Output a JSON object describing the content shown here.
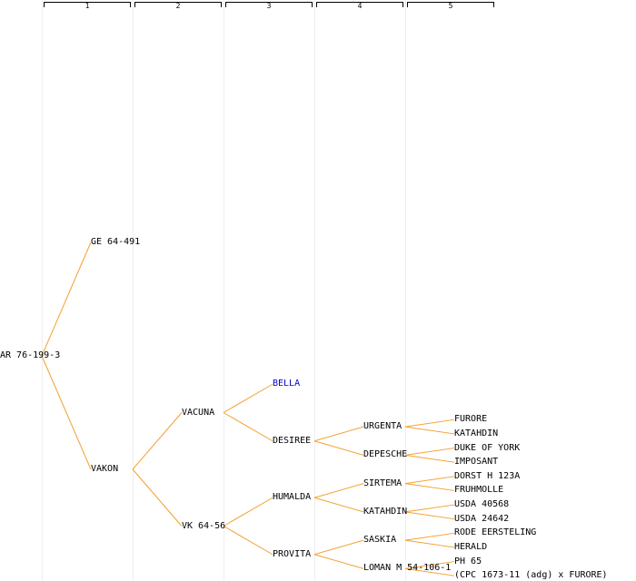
{
  "columns": [
    "1",
    "2",
    "3",
    "4",
    "5"
  ],
  "colors": {
    "edge": "#f4a030",
    "text": "#000000",
    "link": "#0000cc"
  },
  "tree": {
    "label": "AR 76-199-3",
    "children": [
      {
        "label": "GE 64-491",
        "children": []
      },
      {
        "label": "VAKON",
        "children": [
          {
            "label": "VACUNA",
            "children": [
              {
                "label": "BELLA",
                "link": true,
                "children": []
              },
              {
                "label": "DESIREE",
                "children": [
                  {
                    "label": "URGENTA",
                    "children": [
                      {
                        "label": "FURORE",
                        "children": []
                      },
                      {
                        "label": "KATAHDIN",
                        "children": []
                      }
                    ]
                  },
                  {
                    "label": "DEPESCHE",
                    "children": [
                      {
                        "label": "DUKE OF YORK",
                        "children": []
                      },
                      {
                        "label": "IMPOSANT",
                        "children": []
                      }
                    ]
                  }
                ]
              }
            ]
          },
          {
            "label": "VK 64-56",
            "children": [
              {
                "label": "HUMALDA",
                "children": [
                  {
                    "label": "SIRTEMA",
                    "children": [
                      {
                        "label": "DORST H 123A",
                        "children": []
                      },
                      {
                        "label": "FRUHMOLLE",
                        "children": []
                      }
                    ]
                  },
                  {
                    "label": "KATAHDIN",
                    "children": [
                      {
                        "label": "USDA 40568",
                        "children": []
                      },
                      {
                        "label": "USDA 24642",
                        "children": []
                      }
                    ]
                  }
                ]
              },
              {
                "label": "PROVITA",
                "children": [
                  {
                    "label": "SASKIA",
                    "children": [
                      {
                        "label": "RODE EERSTELING",
                        "children": []
                      },
                      {
                        "label": "HERALD",
                        "children": []
                      }
                    ]
                  },
                  {
                    "label": "LOMAN M 54-106-1",
                    "children": [
                      {
                        "label": "PH 65",
                        "children": []
                      },
                      {
                        "label": "(CPC 1673-11 (adg) x FURORE)",
                        "children": []
                      }
                    ]
                  }
                ]
              }
            ]
          }
        ]
      }
    ]
  }
}
